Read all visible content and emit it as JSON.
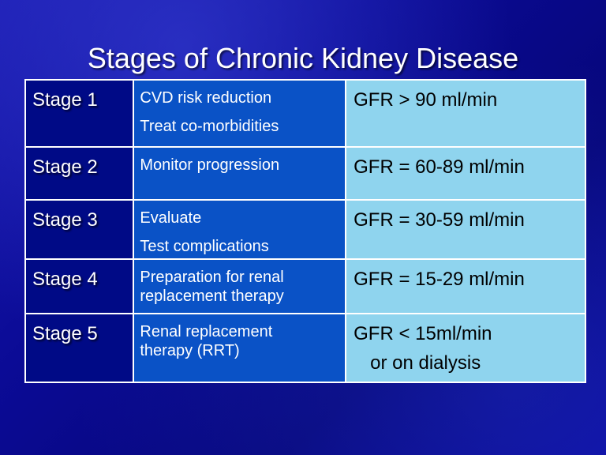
{
  "slide": {
    "title": "Stages of Chronic Kidney Disease"
  },
  "colors": {
    "background": "#0a0a8c",
    "stage_column": "#000a86",
    "action_column": "#0a52c6",
    "gfr_column": "#8fd4ee",
    "border": "#ffffff"
  },
  "table": {
    "rows": [
      {
        "stage": "Stage 1",
        "action": [
          "CVD risk reduction",
          "Treat co-morbidities"
        ],
        "gfr": [
          "GFR > 90 ml/min"
        ]
      },
      {
        "stage": "Stage 2",
        "action": [
          "Monitor progression"
        ],
        "gfr": [
          "GFR = 60-89 ml/min"
        ]
      },
      {
        "stage": "Stage 3",
        "action": [
          "Evaluate",
          "Test complications"
        ],
        "gfr": [
          "GFR = 30-59 ml/min"
        ]
      },
      {
        "stage": "Stage 4",
        "action": [
          "Preparation for renal",
          "replacement therapy"
        ],
        "gfr": [
          "GFR = 15-29 ml/min"
        ]
      },
      {
        "stage": "Stage 5",
        "action": [
          "Renal replacement",
          "therapy (RRT)"
        ],
        "gfr": [
          "GFR < 15ml/min",
          "or on dialysis"
        ]
      }
    ]
  }
}
